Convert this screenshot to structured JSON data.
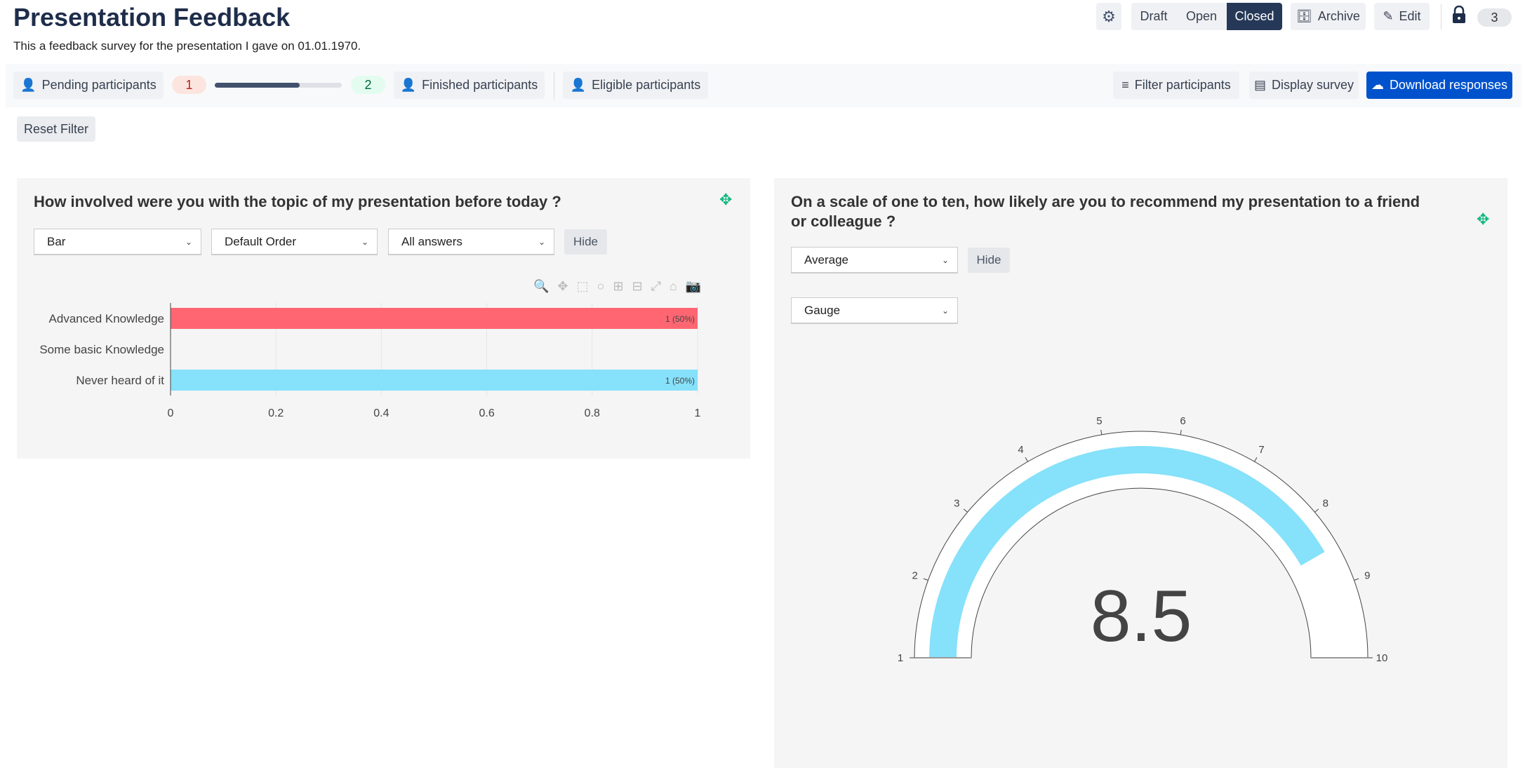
{
  "header": {
    "title": "Presentation Feedback",
    "subtitle": "This a feedback survey for the presentation I gave on 01.01.1970."
  },
  "top_actions": {
    "settings_icon": "gear-icon",
    "status_options": [
      "Draft",
      "Open",
      "Closed"
    ],
    "selected_status": "Closed",
    "archive": "Archive",
    "edit": "Edit",
    "lock_icon": "lock-icon",
    "count": "3"
  },
  "toolbar": {
    "pending": "Pending participants",
    "pending_count": "1",
    "progress_percent": 67,
    "finished_count": "2",
    "finished": "Finished participants",
    "eligible": "Eligible participants",
    "filter": "Filter participants",
    "display": "Display survey",
    "download": "Download responses"
  },
  "reset_filter": "Reset Filter",
  "colors": {
    "primary": "#0052cc",
    "dark": "#253858",
    "bar_red": "#ff6672",
    "bar_cyan": "#86e1fa",
    "move_icon": "#10b981"
  },
  "question1": {
    "title": "How involved were you with the topic of my presentation before today ?",
    "selects": [
      "Bar",
      "Default Order",
      "All answers"
    ],
    "hide": "Hide",
    "chart_data": {
      "type": "bar",
      "orientation": "horizontal",
      "categories": [
        "Advanced Knowledge",
        "Some basic Knowledge",
        "Never heard of it"
      ],
      "values": [
        1,
        0,
        1
      ],
      "data_labels": [
        "1 (50%)",
        "",
        "1 (50%)"
      ],
      "colors": [
        "#ff6672",
        "#86e1fa",
        "#86e1fa"
      ],
      "xlim": [
        0,
        1
      ],
      "xticks": [
        "0",
        "0.2",
        "0.4",
        "0.6",
        "0.8",
        "1"
      ],
      "grid": true
    }
  },
  "question2": {
    "title": "On a scale of one to ten, how likely are you to recommend my presentation to a friend or colleague ?",
    "select_summary": "Average",
    "hide": "Hide",
    "select_chart": "Gauge",
    "chart_data": {
      "type": "gauge",
      "value": 8.5,
      "value_label": "8.5",
      "range": [
        1,
        10
      ],
      "ticks": [
        "1",
        "2",
        "3",
        "4",
        "5",
        "6",
        "7",
        "8",
        "9",
        "10"
      ],
      "bar_color": "#86e1fa"
    }
  }
}
